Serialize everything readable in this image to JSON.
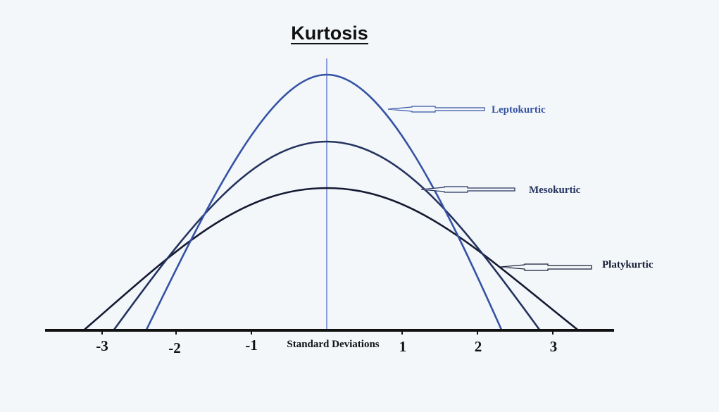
{
  "title": "Kurtosis",
  "x_axis": {
    "label": "Standard Deviations",
    "ticks": [
      "-3",
      "-2",
      "-1",
      "1",
      "2",
      "3"
    ]
  },
  "curves": [
    {
      "label": "Leptokurtic",
      "color": "#3553a3"
    },
    {
      "label": "Mesokurtic",
      "color": "#24335e"
    },
    {
      "label": "Platykurtic",
      "color": "#151a33"
    }
  ],
  "colors": {
    "background": "#f3f7fa",
    "center_line": "#4a66c8",
    "axis": "#111111"
  }
}
